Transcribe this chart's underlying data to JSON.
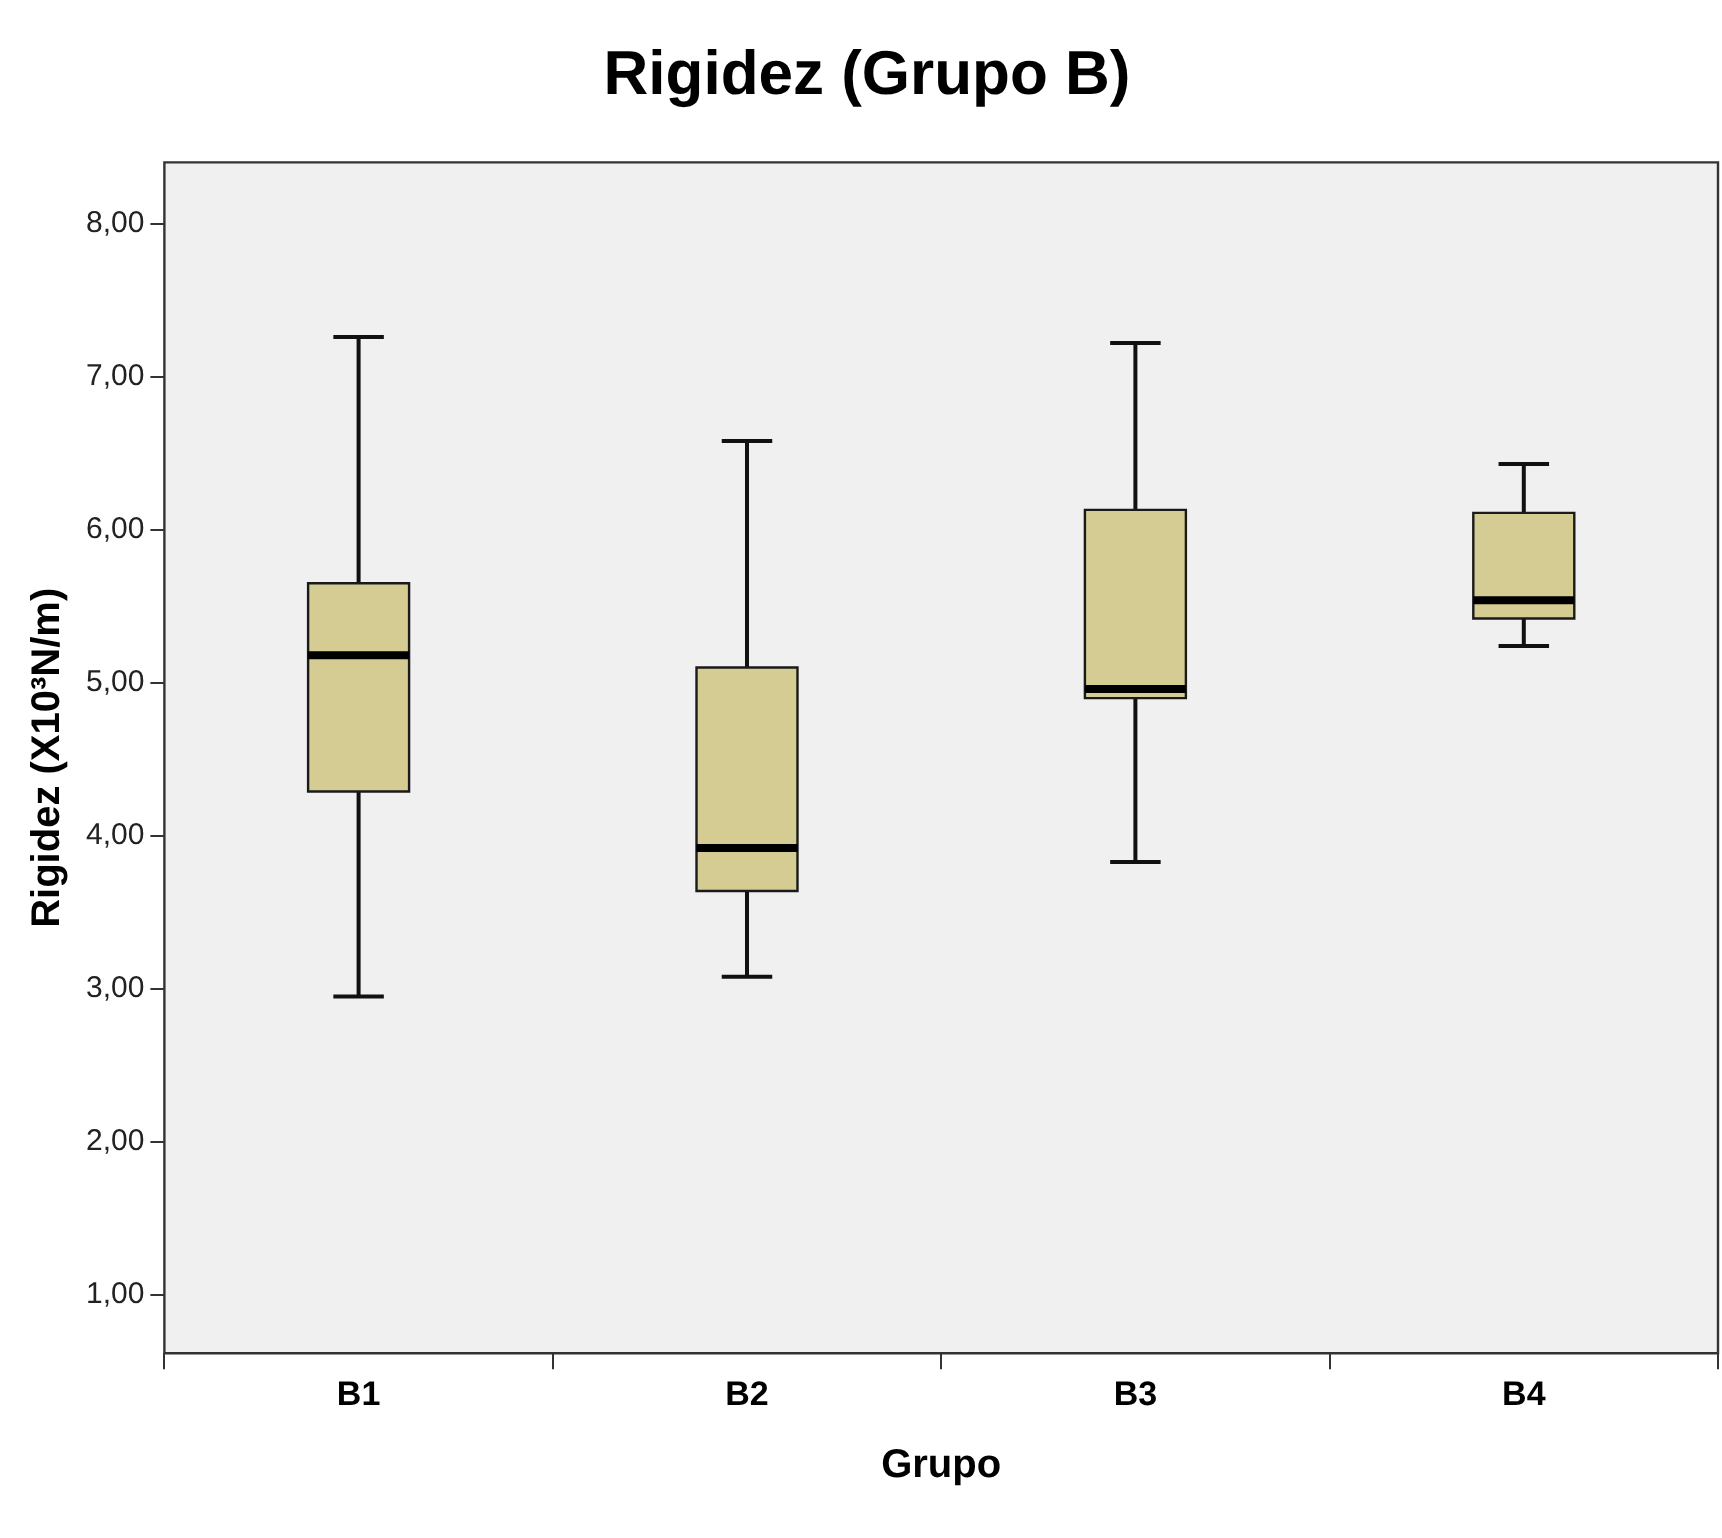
{
  "chart_data": {
    "type": "box",
    "title": "Rigidez (Grupo B)",
    "xlabel": "Grupo",
    "ylabel": "Rigidez (X10³N/m)",
    "categories": [
      "B1",
      "B2",
      "B3",
      "B4"
    ],
    "color": "#d4cc92",
    "boxes": [
      {
        "low": 2.95,
        "q1": 4.29,
        "median": 5.18,
        "q3": 5.65,
        "high": 7.26
      },
      {
        "low": 3.08,
        "q1": 3.64,
        "median": 3.92,
        "q3": 5.1,
        "high": 6.58
      },
      {
        "low": 3.83,
        "q1": 4.9,
        "median": 4.96,
        "q3": 6.13,
        "high": 7.22
      },
      {
        "low": 5.24,
        "q1": 5.42,
        "median": 5.54,
        "q3": 6.11,
        "high": 6.43
      }
    ],
    "ylim": [
      0.62,
      8.4
    ],
    "yticks": [
      {
        "value": 1,
        "label": "1,00"
      },
      {
        "value": 2,
        "label": "2,00"
      },
      {
        "value": 3,
        "label": "3,00"
      },
      {
        "value": 4,
        "label": "4,00"
      },
      {
        "value": 5,
        "label": "5,00"
      },
      {
        "value": 6,
        "label": "6,00"
      },
      {
        "value": 7,
        "label": "7,00"
      },
      {
        "value": 8,
        "label": "8,00"
      }
    ],
    "grid": false,
    "legend": false
  }
}
